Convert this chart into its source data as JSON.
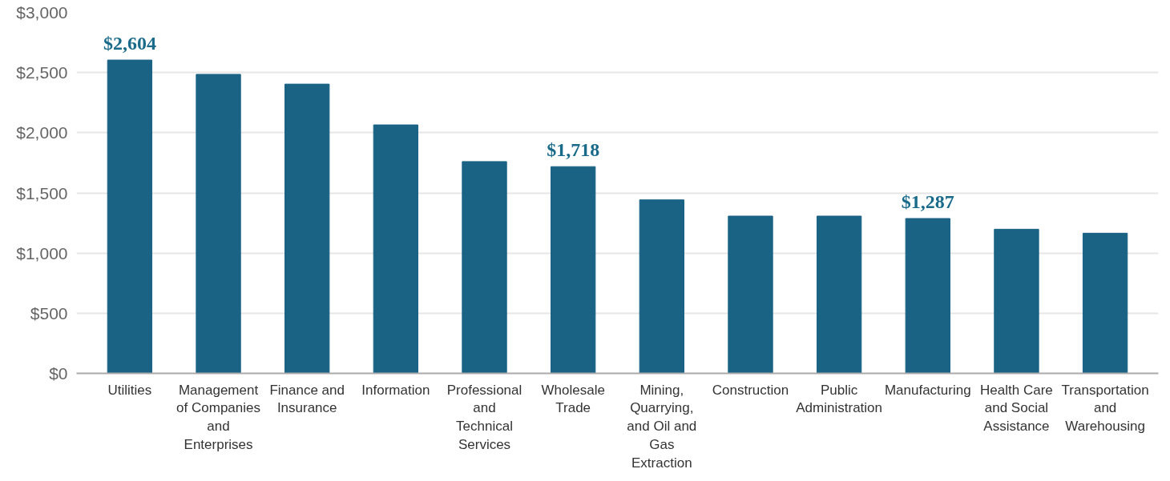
{
  "chart_data": {
    "type": "bar",
    "categories": [
      "Utilities",
      "Management of Companies and Enterprises",
      "Finance and Insurance",
      "Information",
      "Professional and Technical Services",
      "Wholesale Trade",
      "Mining, Quarrying, and Oil and Gas Extraction",
      "Construction",
      "Public Administration",
      "Manufacturing",
      "Health Care and Social Assistance",
      "Transportation and Warehousing"
    ],
    "values": [
      2604,
      2485,
      2404,
      2065,
      1760,
      1718,
      1442,
      1307,
      1307,
      1287,
      1198,
      1165
    ],
    "value_labels": [
      "$2,604",
      null,
      null,
      null,
      null,
      "$1,718",
      null,
      null,
      null,
      "$1,287",
      null,
      null
    ],
    "color": "#1a6385",
    "ylim": [
      0,
      3000
    ],
    "yticks": [
      {
        "value": 0,
        "label": "$0"
      },
      {
        "value": 500,
        "label": "$500"
      },
      {
        "value": 1000,
        "label": "$1,000"
      },
      {
        "value": 1500,
        "label": "$1,500"
      },
      {
        "value": 2000,
        "label": "$2,000"
      },
      {
        "value": 2500,
        "label": "$2,500"
      },
      {
        "value": 3000,
        "label": "$3,000"
      }
    ],
    "grid": "y"
  }
}
